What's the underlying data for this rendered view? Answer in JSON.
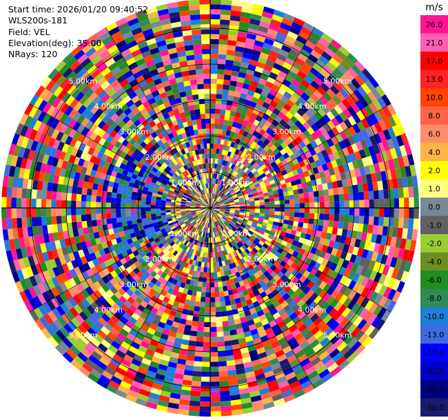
{
  "info": {
    "start_time": "Start time: 2026/01/20 09:40:52",
    "instrument": "WLS200s-181",
    "field": "Field: VEL",
    "elevation": "Elevation(deg): 35.00",
    "nrays": "NRays: 120"
  },
  "chart_data": {
    "type": "heatmap",
    "projection": "polar PPI",
    "field": "VEL",
    "rays": 120,
    "range_rings_km": [
      1,
      2,
      3,
      4,
      5
    ],
    "ring_labels": [
      "1.00km",
      "2.00km",
      "3.00km",
      "4.00km",
      "5.00km"
    ],
    "max_range_km": 5.8,
    "colorbar": {
      "unit": "m/s",
      "ticks": [
        "26.0",
        "21.0",
        "17.0",
        "13.0",
        "10.0",
        "8.0",
        "6.0",
        "4.0",
        "2.0",
        "1.0",
        "0.0",
        "-1.0",
        "-2.0",
        "-4.0",
        "-6.0",
        "-8.0",
        "-10.0",
        "-13.0",
        "-17.0",
        "-21.0",
        "-26.0",
        "-30.0"
      ],
      "colors": [
        "#ff1493",
        "#ff5fb0",
        "#ff0000",
        "#ff2222",
        "#ff4500",
        "#ff6347",
        "#ff8c69",
        "#ffb347",
        "#ffff00",
        "#ffff80",
        "#778899",
        "#606060",
        "#9acd32",
        "#6b8e23",
        "#228b22",
        "#2e8b57",
        "#1e7fd8",
        "#4169e1",
        "#0000ff",
        "#0000cd",
        "#000080",
        "#191970"
      ]
    }
  }
}
